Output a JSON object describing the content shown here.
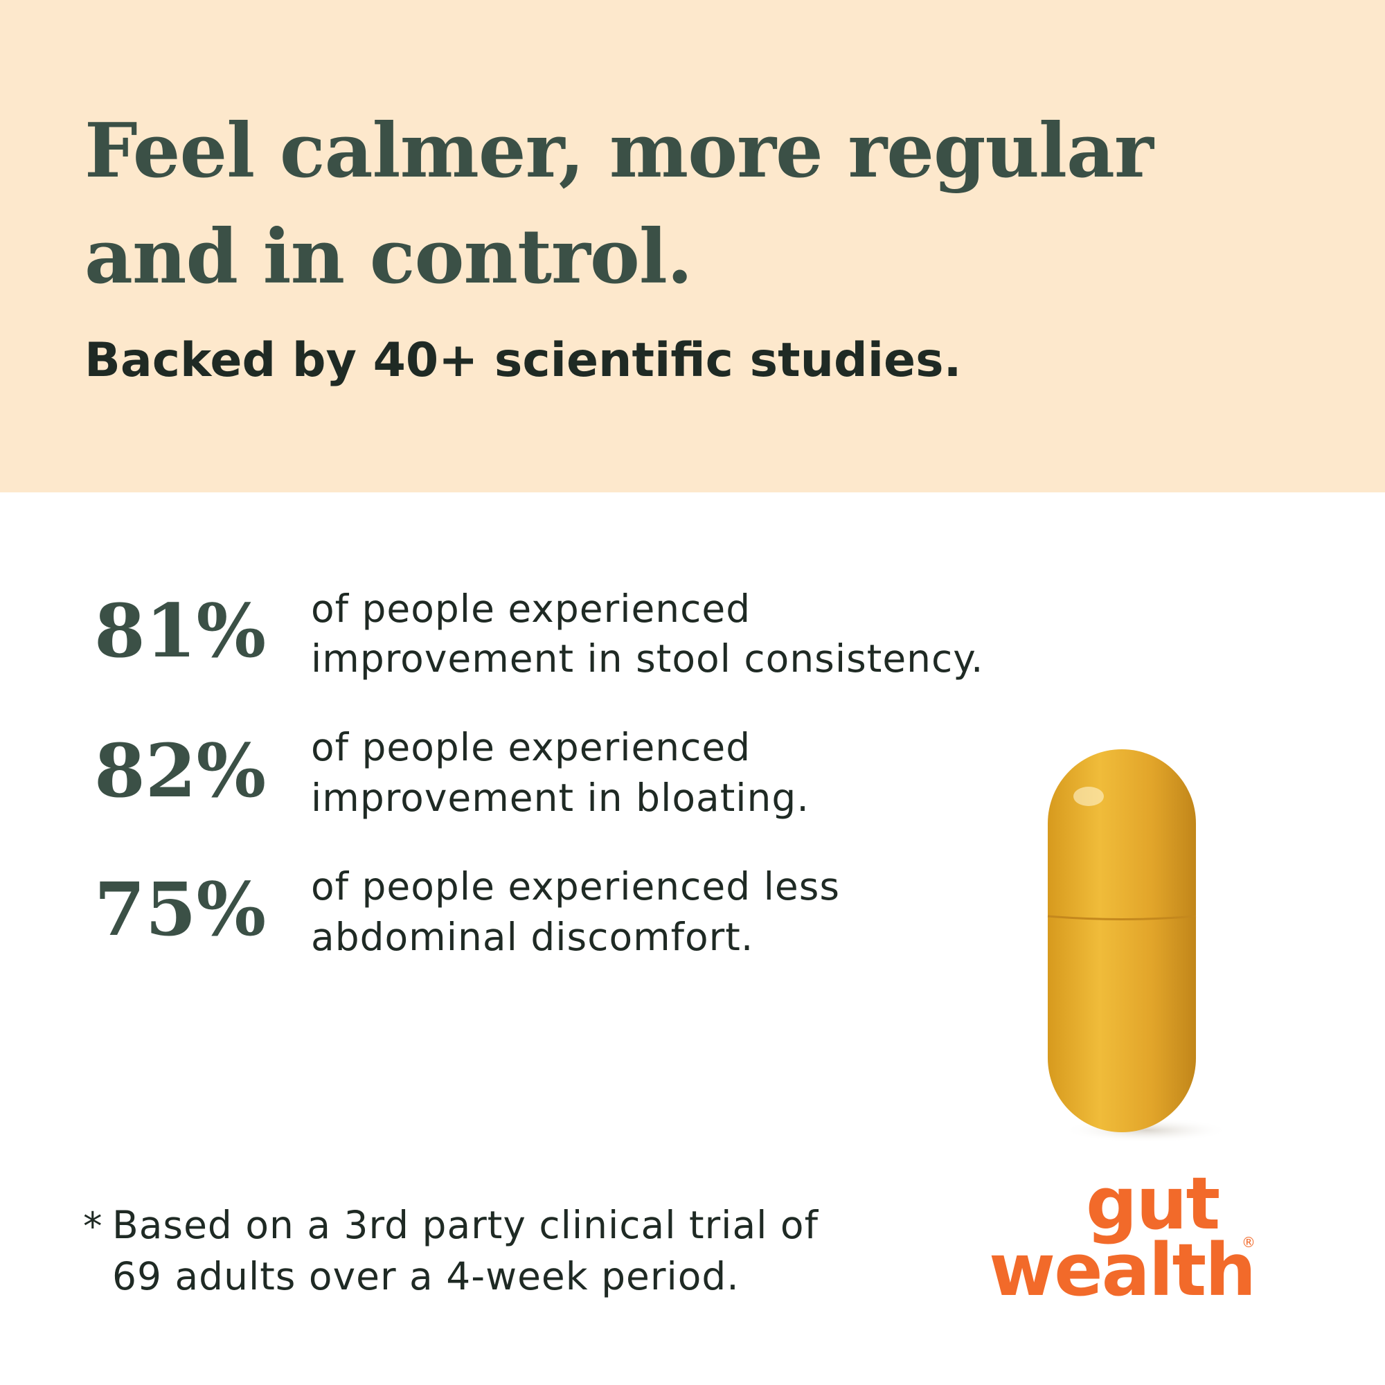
{
  "header": {
    "title": [
      "Feel calmer, more regular",
      "and in control."
    ],
    "subtitle": "Backed by 40+ scientific studies."
  },
  "stats": [
    {
      "value": "81%",
      "text": [
        "of people experienced",
        "improvement in stool consistency."
      ]
    },
    {
      "value": "82%",
      "text": [
        "of people experienced",
        "improvement in bloating."
      ]
    },
    {
      "value": "75%",
      "text": [
        "of people experienced less",
        "abdominal discomfort."
      ]
    }
  ],
  "footnote": {
    "marker": "*",
    "lines": [
      "Based on a 3rd party clinical trial of",
      "69 adults over a 4-week period."
    ]
  },
  "logo": {
    "lines": [
      "gut",
      "wealth"
    ],
    "mark": "®"
  }
}
